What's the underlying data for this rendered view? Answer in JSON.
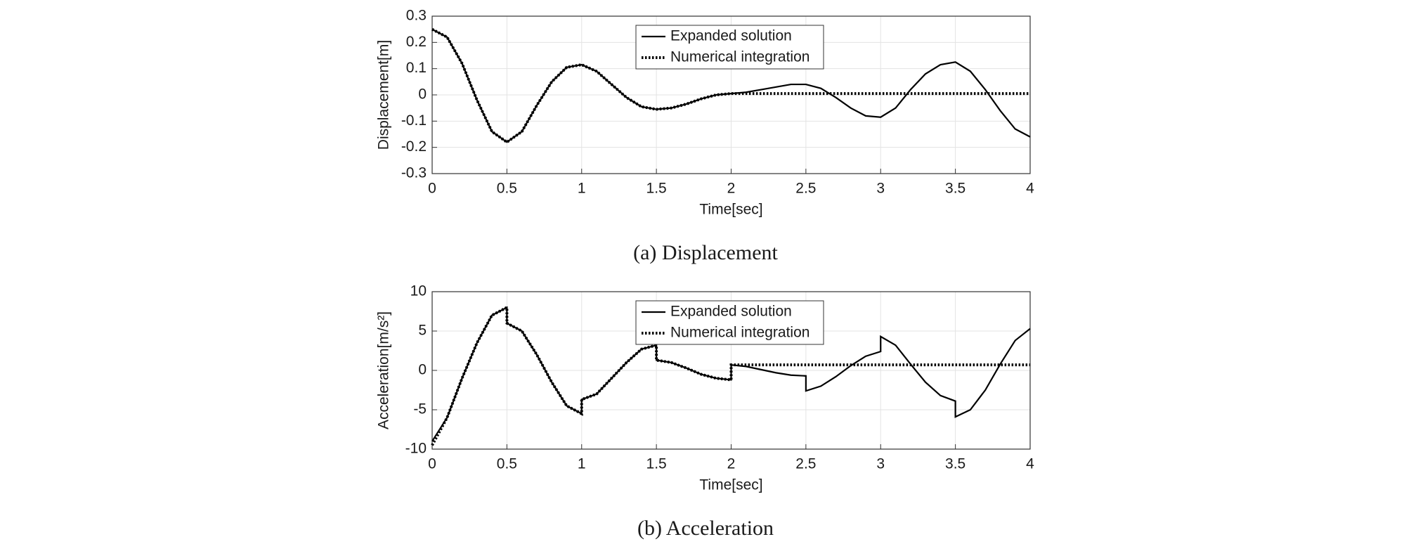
{
  "chart_data": [
    {
      "type": "line",
      "caption": "(a) Displacement",
      "xlabel": "Time[sec]",
      "ylabel": "Displacement[m]",
      "x": [
        0,
        0.1,
        0.2,
        0.3,
        0.4,
        0.5,
        0.6,
        0.7,
        0.8,
        0.9,
        1,
        1.1,
        1.2,
        1.3,
        1.4,
        1.5,
        1.6,
        1.7,
        1.8,
        1.9,
        2,
        2.1,
        2.2,
        2.3,
        2.4,
        2.5,
        2.6,
        2.7,
        2.8,
        2.9,
        3,
        3.1,
        3.2,
        3.3,
        3.4,
        3.5,
        3.6,
        3.7,
        3.8,
        3.9,
        4
      ],
      "series": [
        {
          "name": "Expanded solution",
          "color": "#000000",
          "style": "solid",
          "values": [
            0.25,
            0.22,
            0.12,
            -0.02,
            -0.14,
            -0.18,
            -0.14,
            -0.04,
            0.05,
            0.105,
            0.115,
            0.09,
            0.04,
            -0.01,
            -0.045,
            -0.055,
            -0.05,
            -0.035,
            -0.015,
            0,
            0.005,
            0.01,
            0.02,
            0.03,
            0.04,
            0.04,
            0.025,
            -0.01,
            -0.05,
            -0.08,
            -0.085,
            -0.05,
            0.02,
            0.08,
            0.115,
            0.125,
            0.09,
            0.02,
            -0.06,
            -0.13,
            -0.16
          ]
        },
        {
          "name": "Numerical integration",
          "color": "#000000",
          "style": "dotted",
          "values": [
            0.25,
            0.22,
            0.12,
            -0.02,
            -0.14,
            -0.18,
            -0.14,
            -0.04,
            0.05,
            0.105,
            0.115,
            0.09,
            0.04,
            -0.01,
            -0.045,
            -0.055,
            -0.05,
            -0.035,
            -0.015,
            0,
            0.005,
            0.005,
            0.005,
            0.005,
            0.005,
            0.005,
            0.005,
            0.005,
            0.005,
            0.005,
            0.005,
            0.005,
            0.005,
            0.005,
            0.005,
            0.005,
            0.005,
            0.005,
            0.005,
            0.005,
            0.005
          ]
        }
      ],
      "xlim": [
        0,
        4
      ],
      "xticks": [
        0,
        0.5,
        1,
        1.5,
        2,
        2.5,
        3,
        3.5,
        4
      ],
      "ylim": [
        -0.3,
        0.3
      ],
      "yticks": [
        -0.3,
        -0.2,
        -0.1,
        0,
        0.1,
        0.2,
        0.3
      ],
      "grid": true,
      "legend": "top"
    },
    {
      "type": "line",
      "caption": "(b) Acceleration",
      "xlabel": "Time[sec]",
      "ylabel": "Acceleration[m/s²]",
      "x": [
        0,
        0.1,
        0.2,
        0.3,
        0.4,
        0.5,
        0.5,
        0.6,
        0.7,
        0.8,
        0.9,
        1,
        1,
        1.1,
        1.2,
        1.3,
        1.4,
        1.5,
        1.5,
        1.6,
        1.7,
        1.8,
        1.9,
        2,
        2,
        2.1,
        2.2,
        2.3,
        2.4,
        2.5,
        2.5,
        2.6,
        2.7,
        2.8,
        2.9,
        3,
        3,
        3.1,
        3.2,
        3.3,
        3.4,
        3.5,
        3.5,
        3.6,
        3.7,
        3.8,
        3.9,
        4
      ],
      "series": [
        {
          "name": "Expanded solution",
          "color": "#000000",
          "style": "solid",
          "values": [
            -9,
            -6,
            -1,
            3.5,
            7,
            8,
            6,
            5,
            2,
            -1.5,
            -4.5,
            -5.5,
            -3.7,
            -3,
            -1,
            1,
            2.7,
            3.2,
            1.3,
            1,
            0.3,
            -0.5,
            -1,
            -1.2,
            0.7,
            0.5,
            0.1,
            -0.3,
            -0.6,
            -0.7,
            -2.6,
            -2,
            -0.8,
            0.6,
            1.8,
            2.4,
            4.3,
            3.2,
            0.8,
            -1.5,
            -3.2,
            -3.9,
            -5.9,
            -5,
            -2.5,
            0.8,
            3.8,
            5.3
          ]
        },
        {
          "name": "Numerical integration",
          "color": "#000000",
          "style": "dotted",
          "values": [
            -9.5,
            -6,
            -1,
            3.5,
            7,
            8,
            6,
            5,
            2,
            -1.5,
            -4.5,
            -5.5,
            -3.7,
            -3,
            -1,
            1,
            2.7,
            3.2,
            1.3,
            1,
            0.3,
            -0.5,
            -1,
            -1.2,
            0.7,
            0.7,
            0.7,
            0.7,
            0.7,
            0.7,
            0.7,
            0.7,
            0.7,
            0.7,
            0.7,
            0.7,
            0.7,
            0.7,
            0.7,
            0.7,
            0.7,
            0.7,
            0.7,
            0.7,
            0.7,
            0.7,
            0.7,
            0.7
          ]
        }
      ],
      "xlim": [
        0,
        4
      ],
      "xticks": [
        0,
        0.5,
        1,
        1.5,
        2,
        2.5,
        3,
        3.5,
        4
      ],
      "ylim": [
        -10,
        10
      ],
      "yticks": [
        -10,
        -5,
        0,
        5,
        10
      ],
      "grid": true,
      "legend": "top"
    }
  ]
}
